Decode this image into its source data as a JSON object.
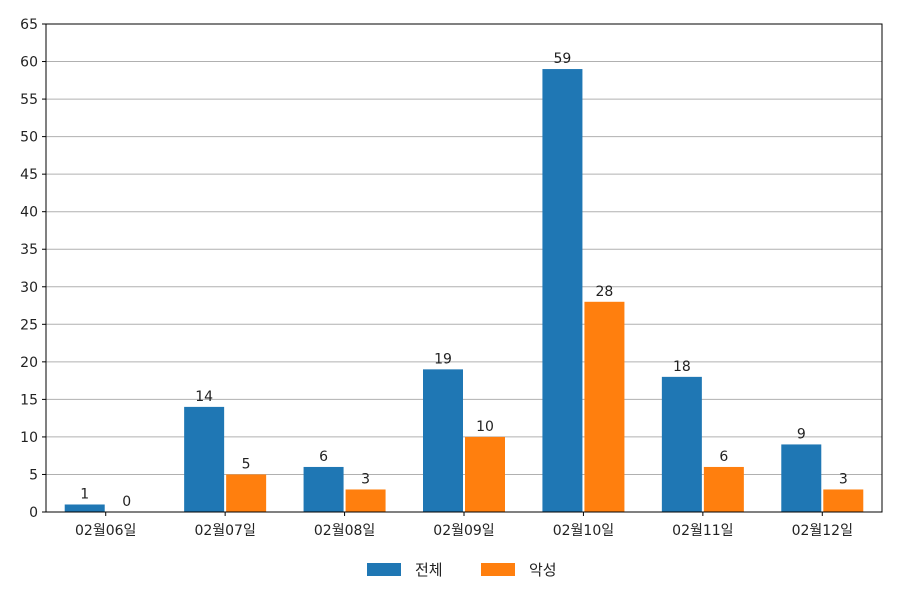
{
  "chart_data": {
    "type": "bar",
    "categories": [
      "02월06일",
      "02월07일",
      "02월08일",
      "02월09일",
      "02월10일",
      "02월11일",
      "02월12일"
    ],
    "series": [
      {
        "name": "전체",
        "color": "#1f77b4",
        "values": [
          1,
          14,
          6,
          19,
          59,
          18,
          9
        ]
      },
      {
        "name": "악성",
        "color": "#ff7f0e",
        "values": [
          0,
          5,
          3,
          10,
          28,
          6,
          3
        ]
      }
    ],
    "ylim": [
      0,
      65
    ],
    "yticks": [
      0,
      5,
      10,
      15,
      20,
      25,
      30,
      35,
      40,
      45,
      50,
      55,
      60,
      65
    ],
    "grid": "horizontal",
    "legend_position": "bottom-center",
    "data_labels": true
  }
}
